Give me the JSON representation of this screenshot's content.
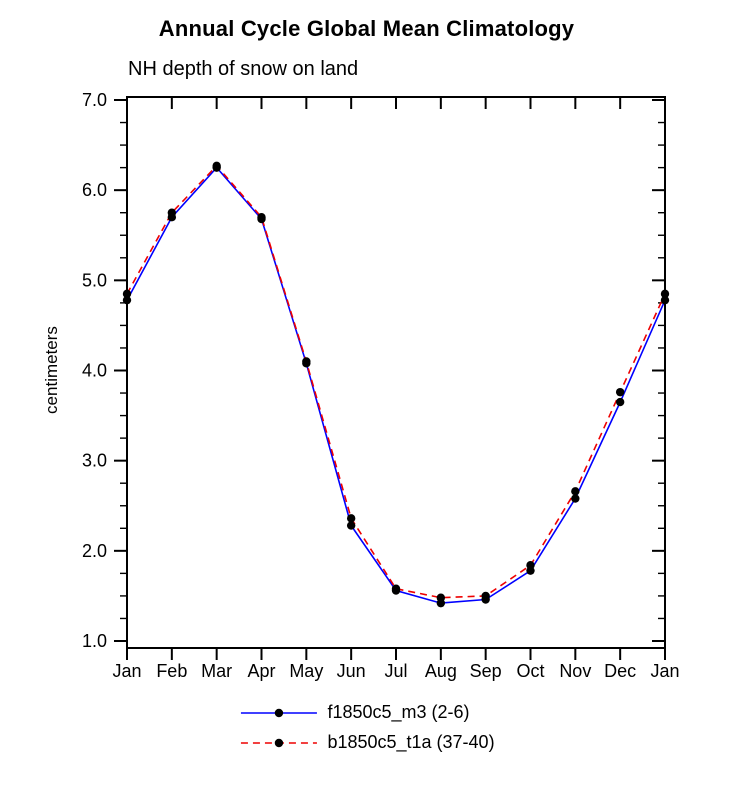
{
  "page": {
    "background": "#ffffff"
  },
  "chart_data": {
    "type": "line",
    "title": "Annual Cycle Global Mean Climatology",
    "subtitle": "NH depth of snow on land",
    "xlabel": "",
    "ylabel": "centimeters",
    "categories": [
      "Jan",
      "Feb",
      "Mar",
      "Apr",
      "May",
      "Jun",
      "Jul",
      "Aug",
      "Sep",
      "Oct",
      "Nov",
      "Dec",
      "Jan"
    ],
    "y_ticks": [
      7.0,
      6.0,
      5.0,
      4.0,
      3.0,
      2.0,
      1.0
    ],
    "y_tick_labels": [
      "7.0",
      "6.0",
      "5.0",
      "4.0",
      "3.0",
      "2.0",
      "1.0"
    ],
    "ylim": [
      1.0,
      7.0
    ],
    "y_minor_step": 0.25,
    "grid": false,
    "legend_position": "bottom-center",
    "marker": {
      "shape": "circle",
      "color": "#000000"
    },
    "series": [
      {
        "name": "f1850c5_m3 (2-6)",
        "color": "#0000ff",
        "line_style": "solid",
        "values": [
          4.78,
          5.7,
          6.25,
          5.68,
          4.08,
          2.28,
          1.56,
          1.42,
          1.46,
          1.78,
          2.58,
          3.65,
          4.78
        ]
      },
      {
        "name": "b1850c5_t1a (37-40)",
        "color": "#ee0000",
        "line_style": "dashed",
        "values": [
          4.85,
          5.75,
          6.27,
          5.7,
          4.1,
          2.36,
          1.58,
          1.48,
          1.5,
          1.84,
          2.66,
          3.76,
          4.85
        ]
      }
    ]
  }
}
